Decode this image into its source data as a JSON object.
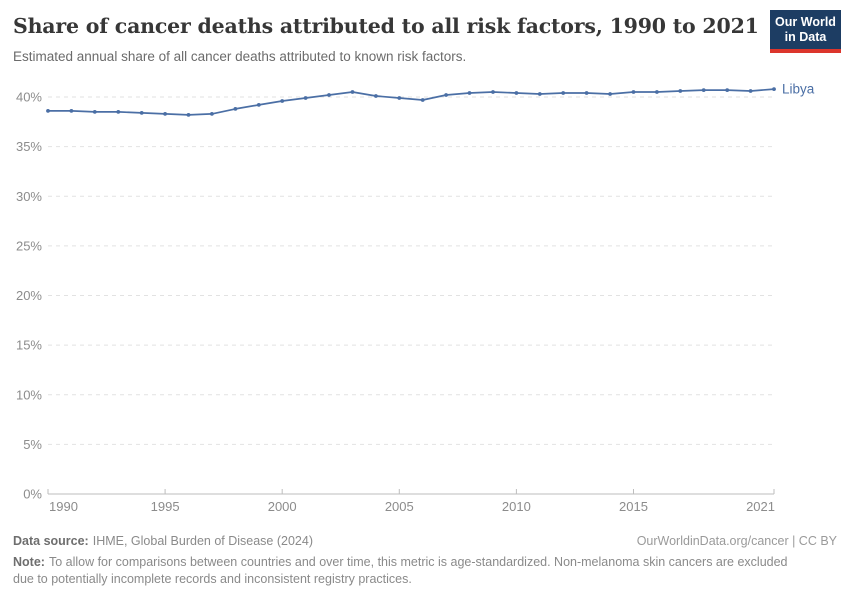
{
  "header": {
    "title": "Share of cancer deaths attributed to all risk factors, 1990 to 2021",
    "subtitle": "Estimated annual share of all cancer deaths attributed to known risk factors.",
    "logo": {
      "line1": "Our World",
      "line2": "in Data"
    }
  },
  "chart_data": {
    "type": "line",
    "title": "Share of cancer deaths attributed to all risk factors, 1990 to 2021",
    "x": [
      1990,
      1991,
      1992,
      1993,
      1994,
      1995,
      1996,
      1997,
      1998,
      1999,
      2000,
      2001,
      2002,
      2003,
      2004,
      2005,
      2006,
      2007,
      2008,
      2009,
      2010,
      2011,
      2012,
      2013,
      2014,
      2015,
      2016,
      2017,
      2018,
      2019,
      2020,
      2021
    ],
    "series": [
      {
        "name": "Libya",
        "color": "#4b6fa5",
        "values": [
          38.6,
          38.6,
          38.5,
          38.5,
          38.4,
          38.3,
          38.2,
          38.3,
          38.8,
          39.2,
          39.6,
          39.9,
          40.2,
          40.5,
          40.1,
          39.9,
          39.7,
          40.2,
          40.4,
          40.5,
          40.4,
          40.3,
          40.4,
          40.4,
          40.3,
          40.5,
          40.5,
          40.6,
          40.7,
          40.7,
          40.6,
          40.8
        ]
      }
    ],
    "x_ticks": [
      1990,
      1995,
      2000,
      2005,
      2010,
      2015,
      2021
    ],
    "y_ticks": [
      0,
      5,
      10,
      15,
      20,
      25,
      30,
      35,
      40
    ],
    "y_tick_format": "{v}%",
    "xlim": [
      1990,
      2021
    ],
    "ylim": [
      0,
      40
    ],
    "grid": "horizontal-dashed",
    "legend_position": "line-end-label"
  },
  "colors": {
    "line": "#4b6fa5",
    "grid": "#e2e2e2",
    "axis": "#bdbdbd",
    "tick_label": "#8c8c8c",
    "logo_bg": "#1d3d63",
    "logo_red": "#dc352c"
  },
  "footer": {
    "data_source": {
      "label": "Data source:",
      "text": "IHME, Global Burden of Disease (2024)"
    },
    "credit": "OurWorldinData.org/cancer | CC BY",
    "note": {
      "label": "Note:",
      "text": "To allow for comparisons between countries and over time, this metric is age-standardized. Non-melanoma skin cancers are excluded due to potentially incomplete records and inconsistent registry practices."
    }
  }
}
